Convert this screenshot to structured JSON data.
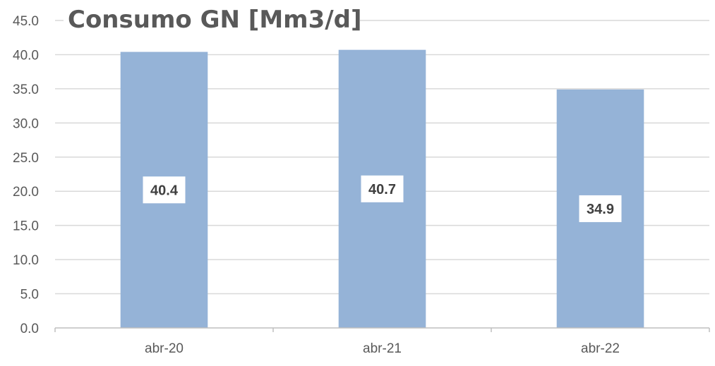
{
  "chart_data": {
    "type": "bar",
    "title": "Consumo GN [Mm3/d]",
    "xlabel": "",
    "ylabel": "",
    "categories": [
      "abr-20",
      "abr-21",
      "abr-22"
    ],
    "values": [
      40.4,
      40.7,
      34.9
    ],
    "data_labels": [
      "40.4",
      "40.7",
      "34.9"
    ],
    "y_ticks": [
      "0.0",
      "5.0",
      "10.0",
      "15.0",
      "20.0",
      "25.0",
      "30.0",
      "35.0",
      "40.0",
      "45.0"
    ],
    "ylim": [
      0,
      45
    ],
    "grid": true,
    "legend": "none",
    "colors": {
      "bar": "#95B3D7",
      "grid": "#D9D9D9",
      "axis": "#BFBFBF",
      "text": "#595959",
      "label_bg": "#FFFFFF"
    }
  }
}
